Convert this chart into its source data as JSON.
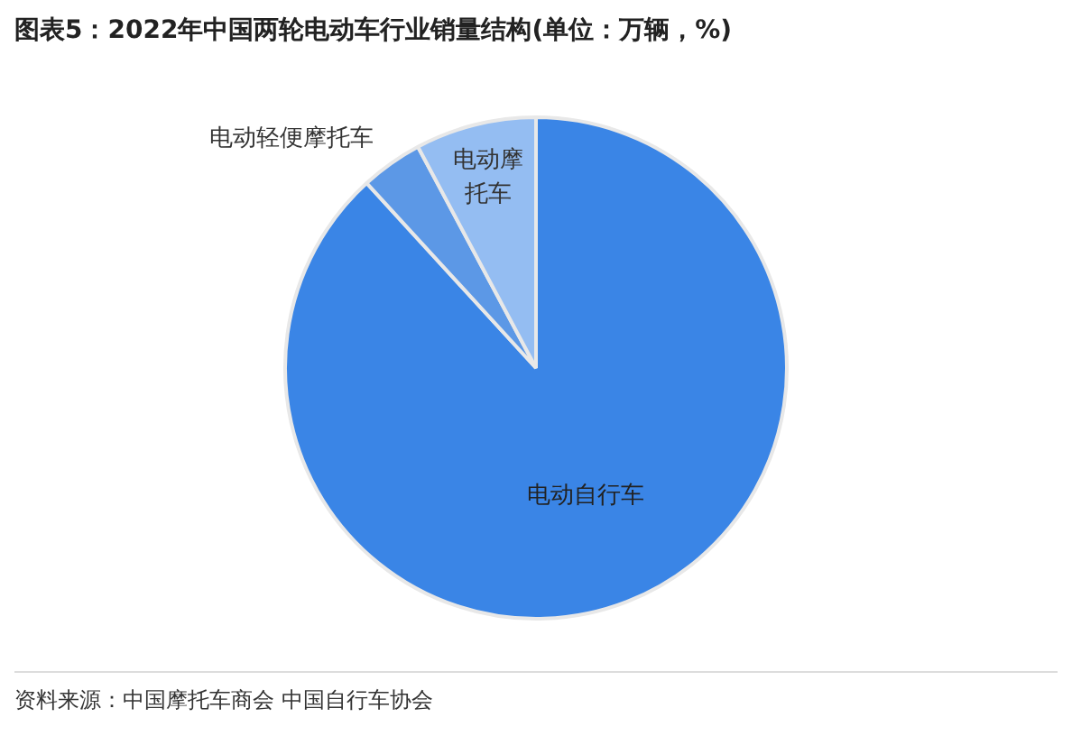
{
  "chart_data": {
    "type": "pie",
    "title": "图表5：2022年中国两轮电动车行业销量结构(单位：万辆，%)",
    "categories": [
      "电动自行车",
      "电动轻便摩托车",
      "电动摩托车"
    ],
    "values": [
      88.2,
      4.0,
      7.8
    ],
    "colors": [
      "#3a85e6",
      "#5c98e6",
      "#94bdf2"
    ],
    "annotations": [
      "资料来源：中国摩托车商会 中国自行车协会"
    ],
    "legend": false
  }
}
